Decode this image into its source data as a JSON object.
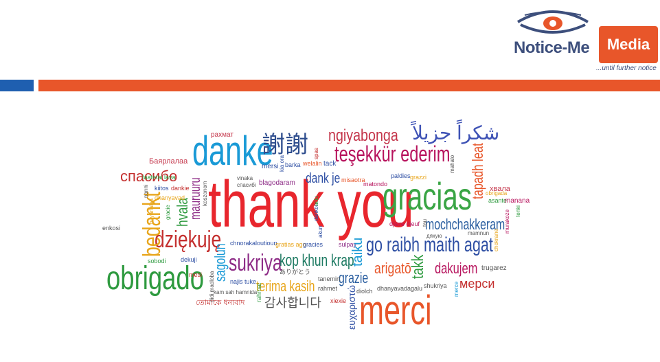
{
  "logo": {
    "name_left": "Notice-Me",
    "name_right": "Media",
    "tagline": "...until further notice"
  },
  "colors": {
    "orange": "#e8562a",
    "blue": "#1f5fb0",
    "navy": "#3d4f7c"
  },
  "cloud": {
    "w01": "thank you",
    "w02": "gracias",
    "w03": "danke",
    "w04": "謝謝",
    "w05": "ngiyabonga",
    "w06": "شكراً جزيلاً",
    "w07": "teşekkür ederim",
    "w08": "obrigado",
    "w09": "merci",
    "w10": "go raibh maith agat",
    "w11": "dziękuję",
    "w12": "mochchakkeram",
    "w13": "sukriya",
    "w14": "kop khun krap",
    "w15": "bedankt",
    "w16": "спасибо",
    "w17": "arigatō",
    "w18": "dakujem",
    "w19": "мерси",
    "w20": "terima kasih",
    "w21": "감사합니다",
    "w22": "grazie",
    "w23": "takk",
    "w24": "tapadh leat",
    "w25": "sagolun",
    "w26": "hvala",
    "w27": "mauruuru",
    "w28": "dank je",
    "w29": "ευχαριστώ",
    "w30": "рахмат",
    "w31": "Баярлалаа",
    "w32": "хвала",
    "w33": "tack",
    "w34": "mersi",
    "w35": "blagodaram",
    "w36": "misaotra",
    "w37": "matondo",
    "w38": "paldies",
    "w39": "grazzi",
    "w40": "asante",
    "w41": "manana",
    "w42": "chnorakaloutioun",
    "w43": "gratias ago",
    "w44": "gracies",
    "w45": "sulpay",
    "w46": "djiere dieuf",
    "w47": "faafetai lava",
    "w48": "kiitos",
    "w49": "dankie",
    "w50": "dhanyavad",
    "w51": "enkosi",
    "w52": "sobodi",
    "w53": "dekuji",
    "w54": "mesi",
    "w55": "najis tuke",
    "w56": "kam sah hamnida",
    "w57": "tanemirt",
    "w58": "rahmet",
    "w59": "diolch",
    "w60": "dhanyavadagalu",
    "w61": "shukriya",
    "w62": "trugarez",
    "w63": "xiexie",
    "w64": "ありがとう",
    "w65": "তোমাকে ধন্যবাদ",
    "w66": "koszonom",
    "w67": "vinaka",
    "w68": "welalin",
    "w69": "barka",
    "w70": "mamnun",
    "w71": "mahalo",
    "w72": "дякую",
    "w73": "спасибі",
    "w74": "obrigada",
    "w75": "tenki",
    "w76": "merce",
    "w77": "akun",
    "w78": "spas",
    "w79": "gracie",
    "w80": "nanni",
    "w81": "bayarlalaa",
    "w82": "didi madloba",
    "w83": "rahmat",
    "w84": "taiku",
    "w85": "tau",
    "w86": "dankon",
    "w87": "aciu",
    "w88": "kia ora",
    "w89": "murakoze",
    "w90": "chokrane"
  }
}
